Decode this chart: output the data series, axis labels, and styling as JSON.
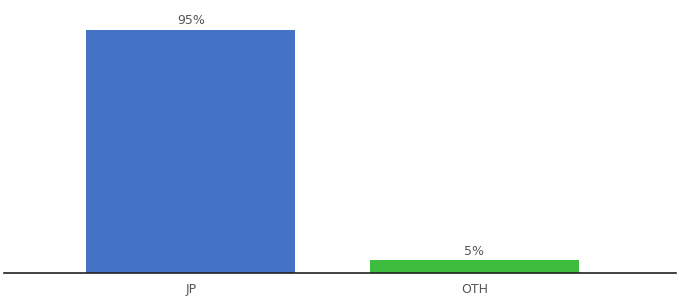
{
  "categories": [
    "JP",
    "OTH"
  ],
  "values": [
    95,
    5
  ],
  "bar_colors": [
    "#4472c4",
    "#3dbb3d"
  ],
  "bar_labels": [
    "95%",
    "5%"
  ],
  "background_color": "#ffffff",
  "text_color": "#555555",
  "label_fontsize": 9,
  "tick_fontsize": 9,
  "ylim": [
    0,
    105
  ],
  "bar_width": 0.28,
  "x_positions": [
    0.3,
    0.68
  ],
  "xlim": [
    0.05,
    0.95
  ]
}
